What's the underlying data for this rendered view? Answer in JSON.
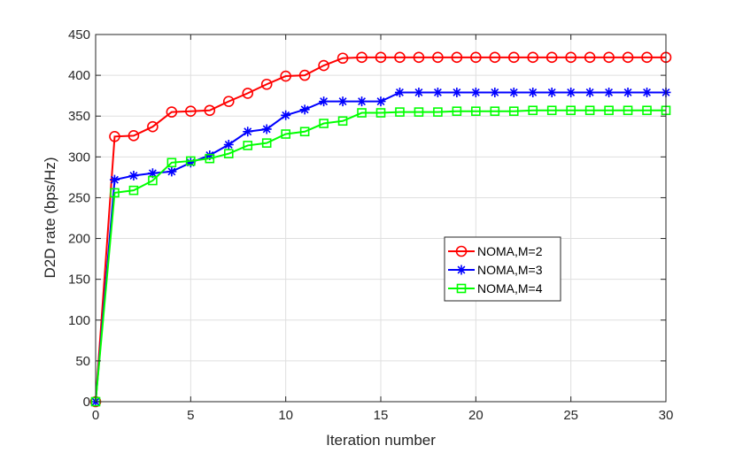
{
  "chart_data": {
    "type": "line",
    "title": "",
    "xlabel": "Iteration number",
    "ylabel": "D2D rate (bps/Hz)",
    "xlim": [
      0,
      30
    ],
    "ylim": [
      0,
      450
    ],
    "xticks": [
      0,
      5,
      10,
      15,
      20,
      25,
      30
    ],
    "yticks": [
      0,
      50,
      100,
      150,
      200,
      250,
      300,
      350,
      400,
      450
    ],
    "grid": true,
    "legend_position": "center-right",
    "x": [
      0,
      1,
      2,
      3,
      4,
      5,
      6,
      7,
      8,
      9,
      10,
      11,
      12,
      13,
      14,
      15,
      16,
      17,
      18,
      19,
      20,
      21,
      22,
      23,
      24,
      25,
      26,
      27,
      28,
      29,
      30
    ],
    "series": [
      {
        "name": "NOMA,M=2",
        "color": "#ff0000",
        "marker": "circle",
        "values": [
          0,
          325,
          326,
          337,
          355,
          356,
          357,
          368,
          378,
          389,
          399,
          400,
          412,
          421,
          422,
          422,
          422,
          422,
          422,
          422,
          422,
          422,
          422,
          422,
          422,
          422,
          422,
          422,
          422,
          422,
          422
        ]
      },
      {
        "name": "NOMA,M=3",
        "color": "#0000ff",
        "marker": "asterisk",
        "values": [
          0,
          272,
          277,
          280,
          282,
          293,
          302,
          315,
          331,
          334,
          351,
          358,
          368,
          368,
          368,
          368,
          379,
          379,
          379,
          379,
          379,
          379,
          379,
          379,
          379,
          379,
          379,
          379,
          379,
          379,
          379
        ]
      },
      {
        "name": "NOMA,M=4",
        "color": "#00ff00",
        "marker": "square",
        "values": [
          0,
          256,
          259,
          271,
          293,
          295,
          298,
          304,
          314,
          317,
          328,
          331,
          341,
          344,
          354,
          354,
          355,
          355,
          355,
          356,
          356,
          356,
          356,
          357,
          357,
          357,
          357,
          357,
          357,
          357,
          357
        ]
      }
    ]
  }
}
